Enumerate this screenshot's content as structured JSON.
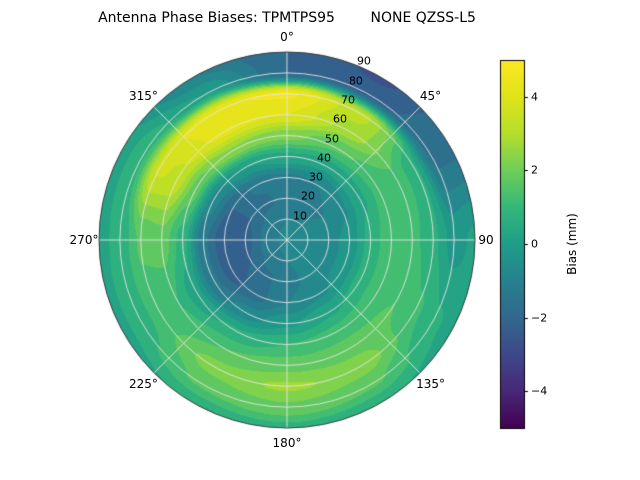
{
  "figure": {
    "background": "#ffffff"
  },
  "chart_data": {
    "type": "heatmap",
    "projection": "polar",
    "title": "Antenna Phase Biases: TPMTPS95        NONE QZSS-L5",
    "angle_direction": "clockwise",
    "zero_location": "top",
    "angle_ticks": [
      {
        "angle": 0,
        "label": "0°"
      },
      {
        "angle": 45,
        "label": "45°"
      },
      {
        "angle": 90,
        "label": "90"
      },
      {
        "angle": 135,
        "label": "135°"
      },
      {
        "angle": 180,
        "label": "180°"
      },
      {
        "angle": 225,
        "label": "225°"
      },
      {
        "angle": 270,
        "label": "270°"
      },
      {
        "angle": 315,
        "label": "315°"
      }
    ],
    "radial_axis_max": 90,
    "radial_label_angle_deg": 22.5,
    "radial_ticks": [
      {
        "r": 10,
        "label": "10"
      },
      {
        "r": 20,
        "label": "20"
      },
      {
        "r": 30,
        "label": "30"
      },
      {
        "r": 40,
        "label": "40"
      },
      {
        "r": 50,
        "label": "50"
      },
      {
        "r": 60,
        "label": "60"
      },
      {
        "r": 70,
        "label": "70"
      },
      {
        "r": 80,
        "label": "80"
      },
      {
        "r": 90,
        "label": "90"
      }
    ],
    "azimuth_deg": [
      0,
      30,
      60,
      90,
      120,
      150,
      180,
      210,
      240,
      270,
      300,
      330
    ],
    "zenith_deg": [
      0,
      10,
      20,
      30,
      40,
      50,
      60,
      70,
      80,
      90
    ],
    "bias_mm": [
      [
        -0.8,
        -0.8,
        -0.8,
        -0.8,
        -0.8,
        -0.8,
        -0.8,
        -0.8,
        -0.8,
        -0.8,
        -0.8,
        -0.8
      ],
      [
        -1.0,
        -1.0,
        -0.9,
        -0.8,
        -0.8,
        -0.9,
        -1.0,
        -1.1,
        -1.3,
        -1.4,
        -1.3,
        -1.1
      ],
      [
        -1.3,
        -1.2,
        -1.0,
        -0.7,
        -0.7,
        -0.9,
        -1.2,
        -1.6,
        -2.0,
        -2.2,
        -2.0,
        -1.6
      ],
      [
        -1.1,
        -1.0,
        -0.6,
        -0.3,
        -0.3,
        -0.6,
        -1.0,
        -1.7,
        -2.3,
        -2.4,
        -2.0,
        -1.4
      ],
      [
        0.4,
        0.2,
        0.4,
        0.7,
        0.7,
        0.4,
        -0.1,
        -0.8,
        -1.4,
        -1.4,
        -0.7,
        0.0
      ],
      [
        2.2,
        1.6,
        1.2,
        1.4,
        1.4,
        1.2,
        1.0,
        0.6,
        0.2,
        0.8,
        1.8,
        2.4
      ],
      [
        4.0,
        2.8,
        1.4,
        1.2,
        1.5,
        1.8,
        1.8,
        1.5,
        1.0,
        1.8,
        3.4,
        4.2
      ],
      [
        4.6,
        3.2,
        0.6,
        0.6,
        1.1,
        2.3,
        2.6,
        2.2,
        1.2,
        1.6,
        3.6,
        4.4
      ],
      [
        -2.0,
        -2.2,
        -1.6,
        -0.2,
        0.6,
        1.6,
        1.9,
        1.6,
        0.8,
        0.6,
        0.9,
        0.0
      ],
      [
        -2.0,
        -2.6,
        -1.6,
        0.1,
        0.3,
        0.6,
        0.8,
        0.6,
        0.3,
        0.4,
        0.2,
        -1.0
      ]
    ],
    "colormap": "viridis",
    "viridis_stops": [
      [
        0.0,
        "#440154"
      ],
      [
        0.1,
        "#482878"
      ],
      [
        0.2,
        "#3e4989"
      ],
      [
        0.3,
        "#31688e"
      ],
      [
        0.4,
        "#26828e"
      ],
      [
        0.5,
        "#1f9e89"
      ],
      [
        0.6,
        "#35b779"
      ],
      [
        0.7,
        "#6ece58"
      ],
      [
        0.8,
        "#b5de2b"
      ],
      [
        0.9,
        "#dfe318"
      ],
      [
        1.0,
        "#fde725"
      ]
    ],
    "colorbar": {
      "label": "Bias (mm)",
      "vmin": -5,
      "vmax": 5,
      "ticks": [
        {
          "value": 4,
          "label": "4"
        },
        {
          "value": 2,
          "label": "2"
        },
        {
          "value": 0,
          "label": "0"
        },
        {
          "value": -2,
          "label": "−2"
        },
        {
          "value": -4,
          "label": "−4"
        }
      ]
    }
  }
}
